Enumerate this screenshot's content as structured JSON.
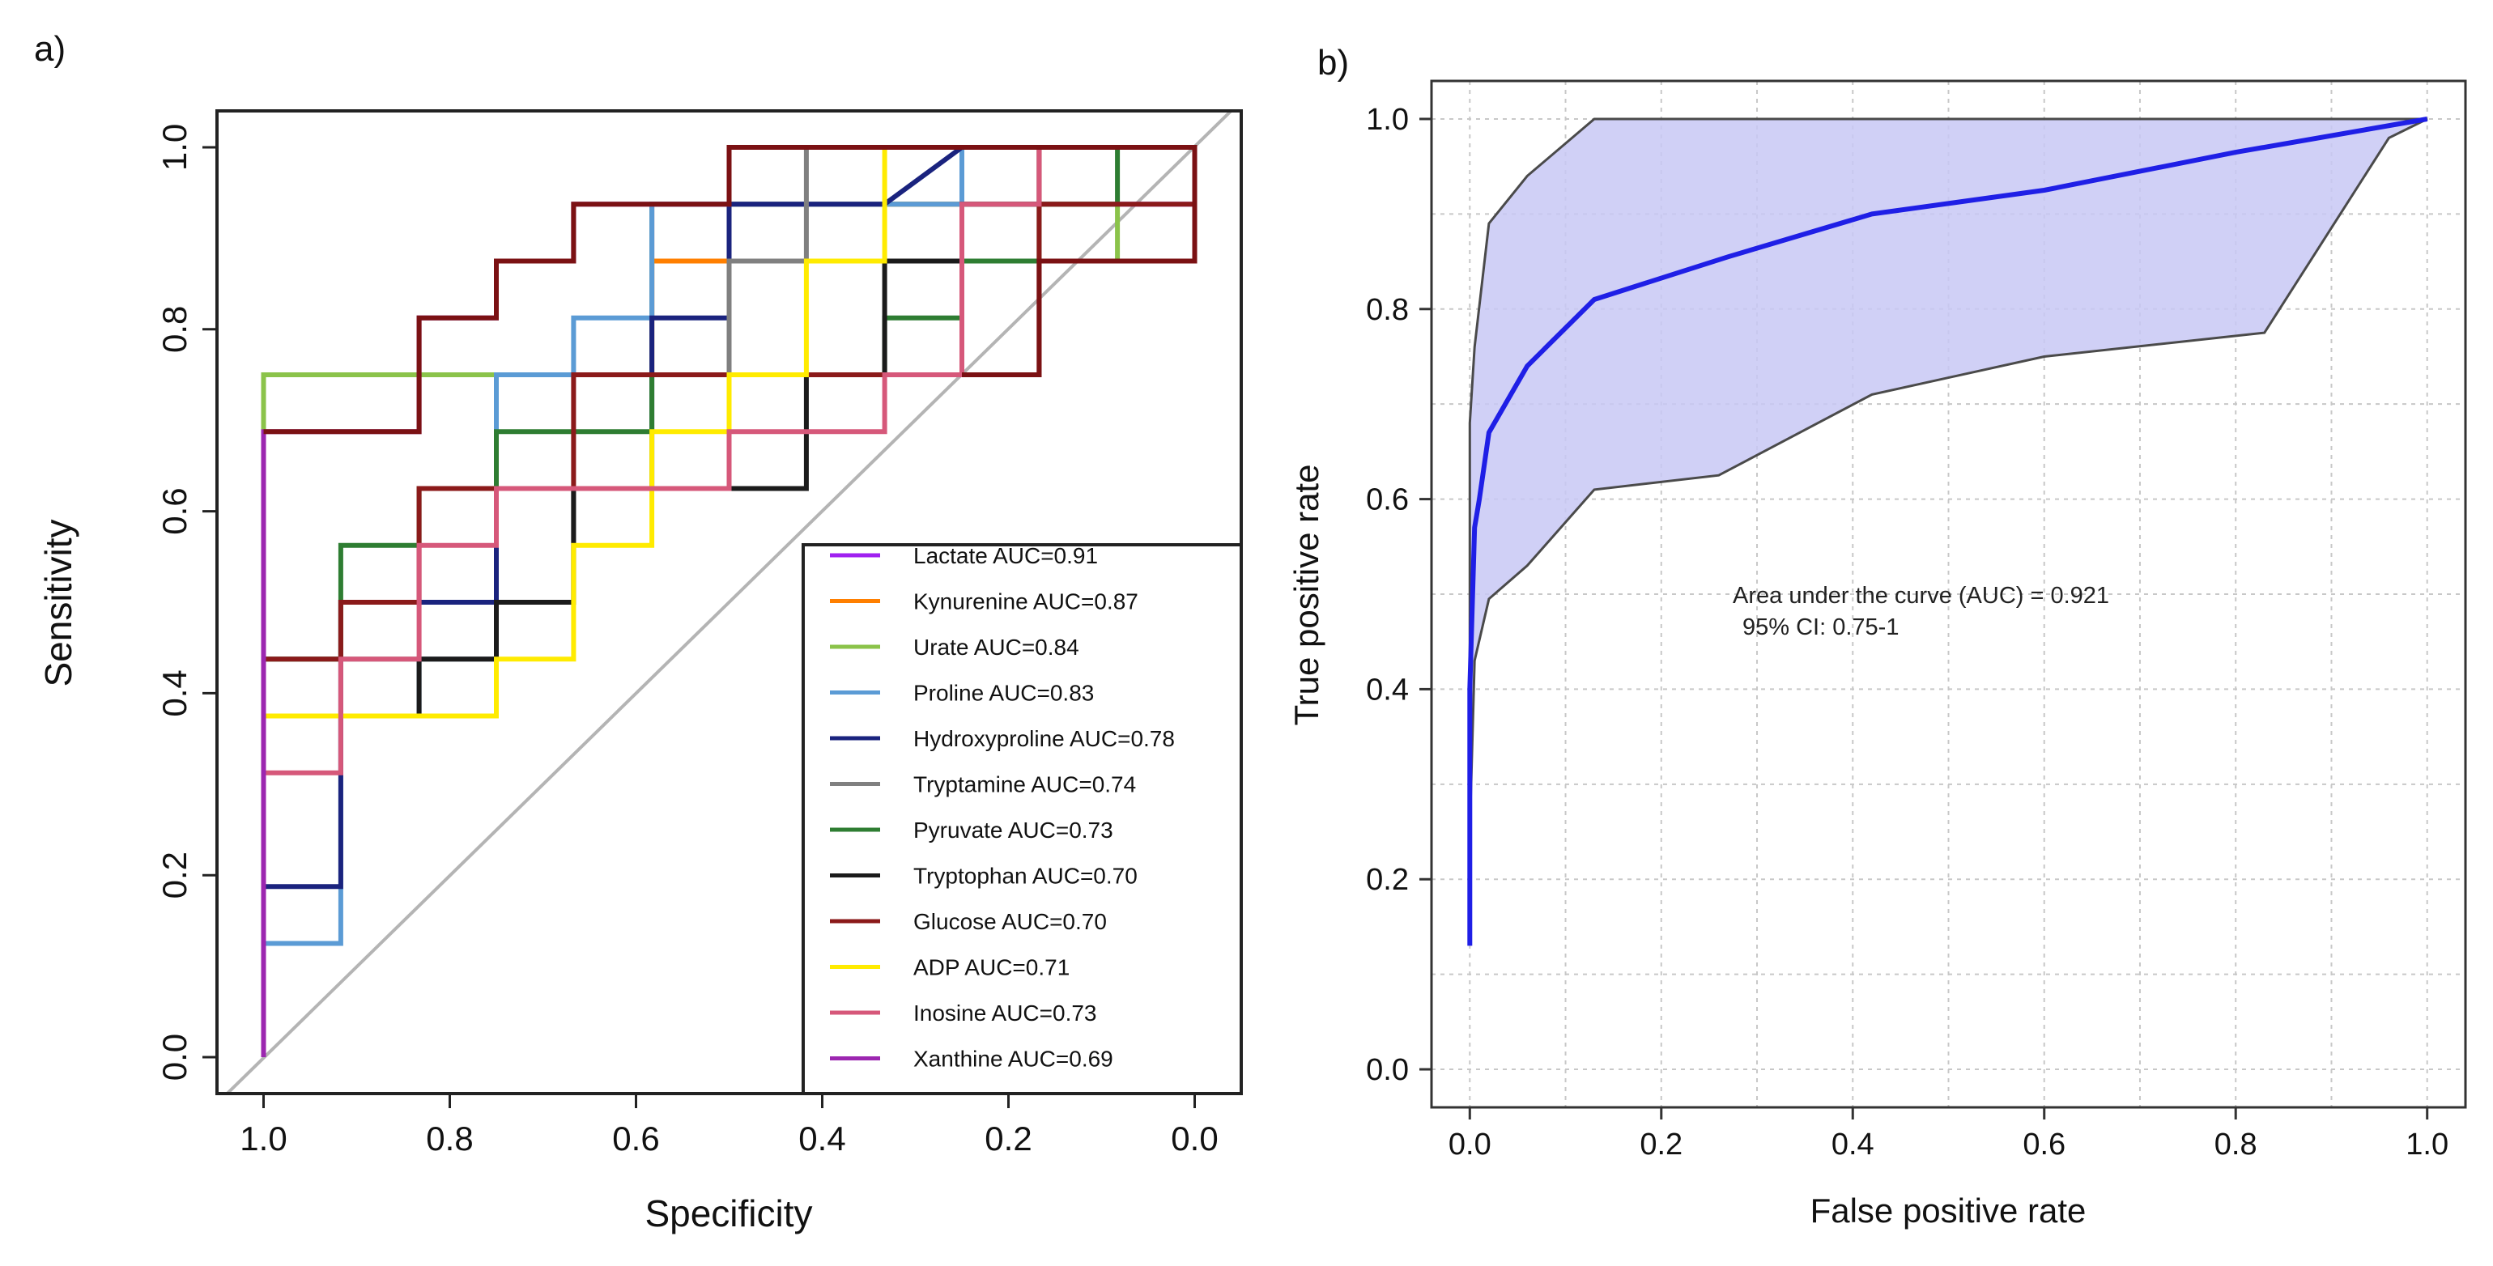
{
  "chart_data": [
    {
      "panel_label": "a)",
      "type": "line",
      "subtype": "roc-step",
      "title": "",
      "xlabel": "Specificity",
      "ylabel": "Sensitivity",
      "xlim": [
        1.05,
        -0.05
      ],
      "ylim": [
        -0.04,
        1.04
      ],
      "x_ticks": [
        1.0,
        0.8,
        0.6,
        0.4,
        0.2,
        0.0
      ],
      "x_tick_labels": [
        "1.0",
        "0.8",
        "0.6",
        "0.4",
        "0.2",
        "0.0"
      ],
      "y_ticks": [
        0.0,
        0.2,
        0.4,
        0.6,
        0.8,
        1.0
      ],
      "y_tick_labels": [
        "0.0",
        "0.2",
        "0.4",
        "0.6",
        "0.8",
        "1.0"
      ],
      "grid": false,
      "legend_position": "bottom-right",
      "reference_line": {
        "color": "#b4b4b4",
        "from": [
          1.0,
          0.0
        ],
        "to": [
          0.0,
          1.0
        ]
      },
      "series": [
        {
          "name": "Lactate AUC=0.91",
          "color": "#a020f0",
          "points": [
            [
              1.0,
              0.0
            ],
            [
              1.0,
              0.75
            ],
            [
              0.583,
              0.75
            ],
            [
              0.583,
              0.9375
            ],
            [
              0.0,
              0.9375
            ],
            [
              0.0,
              1.0
            ]
          ]
        },
        {
          "name": "Kynurenine AUC=0.87",
          "color": "#ff7f00",
          "points": [
            [
              1.0,
              0.0
            ],
            [
              1.0,
              0.75
            ],
            [
              0.583,
              0.75
            ],
            [
              0.583,
              0.875
            ],
            [
              0.5,
              0.875
            ],
            [
              0.5,
              0.9375
            ],
            [
              0.25,
              0.9375
            ],
            [
              0.25,
              1.0
            ],
            [
              0.0,
              1.0
            ]
          ]
        },
        {
          "name": "Urate AUC=0.84",
          "color": "#8bc34a",
          "points": [
            [
              1.0,
              0.0
            ],
            [
              1.0,
              0.75
            ],
            [
              0.583,
              0.75
            ],
            [
              0.583,
              0.9375
            ],
            [
              0.083,
              0.9375
            ],
            [
              0.083,
              0.875
            ],
            [
              0.25,
              0.875
            ],
            [
              0.25,
              1.0
            ],
            [
              0.0,
              1.0
            ],
            [
              0.0,
              0.9375
            ]
          ]
        },
        {
          "name": "Proline AUC=0.83",
          "color": "#5b9bd5",
          "points": [
            [
              1.0,
              0.0
            ],
            [
              1.0,
              0.125
            ],
            [
              0.917,
              0.125
            ],
            [
              0.917,
              0.375
            ],
            [
              0.833,
              0.375
            ],
            [
              0.833,
              0.4375
            ],
            [
              0.75,
              0.4375
            ],
            [
              0.75,
              0.75
            ],
            [
              0.667,
              0.75
            ],
            [
              0.667,
              0.8125
            ],
            [
              0.583,
              0.8125
            ],
            [
              0.583,
              0.9375
            ],
            [
              0.25,
              0.9375
            ],
            [
              0.25,
              1.0
            ],
            [
              0.0,
              1.0
            ]
          ]
        },
        {
          "name": "Hydroxyproline AUC=0.78",
          "color": "#1a237e",
          "points": [
            [
              1.0,
              0.0
            ],
            [
              1.0,
              0.1875
            ],
            [
              0.917,
              0.1875
            ],
            [
              0.917,
              0.5
            ],
            [
              0.75,
              0.5
            ],
            [
              0.75,
              0.625
            ],
            [
              0.583,
              0.625
            ],
            [
              0.583,
              0.8125
            ],
            [
              0.5,
              0.8125
            ],
            [
              0.5,
              0.9375
            ],
            [
              0.333,
              0.9375
            ],
            [
              0.25,
              1.0
            ],
            [
              0.0,
              1.0
            ]
          ]
        },
        {
          "name": "Tryptamine AUC=0.74",
          "color": "#808080",
          "points": [
            [
              1.0,
              0.0
            ],
            [
              1.0,
              0.4375
            ],
            [
              0.75,
              0.4375
            ],
            [
              0.75,
              0.5
            ],
            [
              0.667,
              0.5
            ],
            [
              0.667,
              0.625
            ],
            [
              0.5,
              0.625
            ],
            [
              0.5,
              0.875
            ],
            [
              0.417,
              0.875
            ],
            [
              0.417,
              1.0
            ],
            [
              0.0,
              1.0
            ]
          ]
        },
        {
          "name": "Pyruvate AUC=0.73",
          "color": "#2e7d32",
          "points": [
            [
              1.0,
              0.0
            ],
            [
              1.0,
              0.4375
            ],
            [
              0.917,
              0.4375
            ],
            [
              0.917,
              0.5625
            ],
            [
              0.833,
              0.5625
            ],
            [
              0.833,
              0.625
            ],
            [
              0.75,
              0.625
            ],
            [
              0.75,
              0.6875
            ],
            [
              0.583,
              0.6875
            ],
            [
              0.583,
              0.75
            ],
            [
              0.333,
              0.75
            ],
            [
              0.333,
              0.8125
            ],
            [
              0.25,
              0.8125
            ],
            [
              0.25,
              0.875
            ],
            [
              0.167,
              0.875
            ],
            [
              0.167,
              0.9375
            ],
            [
              0.083,
              0.9375
            ],
            [
              0.083,
              1.0
            ],
            [
              0.0,
              1.0
            ]
          ]
        },
        {
          "name": "Tryptophan AUC=0.70",
          "color": "#1b1b1b",
          "points": [
            [
              1.0,
              0.0
            ],
            [
              1.0,
              0.375
            ],
            [
              0.833,
              0.375
            ],
            [
              0.833,
              0.4375
            ],
            [
              0.75,
              0.4375
            ],
            [
              0.75,
              0.5
            ],
            [
              0.667,
              0.5
            ],
            [
              0.667,
              0.625
            ],
            [
              0.417,
              0.625
            ],
            [
              0.417,
              0.75
            ],
            [
              0.333,
              0.75
            ],
            [
              0.333,
              0.875
            ],
            [
              0.25,
              0.875
            ],
            [
              0.25,
              0.9375
            ],
            [
              0.167,
              0.9375
            ],
            [
              0.167,
              1.0
            ],
            [
              0.0,
              1.0
            ]
          ]
        },
        {
          "name": "Glucose AUC=0.70",
          "color": "#8b1a1a",
          "points": [
            [
              1.0,
              0.0
            ],
            [
              1.0,
              0.4375
            ],
            [
              0.917,
              0.4375
            ],
            [
              0.917,
              0.5
            ],
            [
              0.833,
              0.5
            ],
            [
              0.833,
              0.625
            ],
            [
              0.667,
              0.625
            ],
            [
              0.667,
              0.75
            ],
            [
              0.417,
              0.75
            ],
            [
              0.417,
              0.75
            ],
            [
              0.25,
              0.75
            ],
            [
              0.167,
              0.75
            ],
            [
              0.167,
              0.9375
            ],
            [
              0.0,
              0.9375
            ],
            [
              0.0,
              0.875
            ],
            [
              0.167,
              0.875
            ],
            [
              0.167,
              1.0
            ],
            [
              0.0,
              1.0
            ]
          ]
        },
        {
          "name": "ADP AUC=0.71",
          "color": "#ffeb00",
          "points": [
            [
              1.0,
              0.0
            ],
            [
              1.0,
              0.375
            ],
            [
              0.75,
              0.375
            ],
            [
              0.75,
              0.4375
            ],
            [
              0.667,
              0.4375
            ],
            [
              0.667,
              0.5625
            ],
            [
              0.583,
              0.5625
            ],
            [
              0.583,
              0.6875
            ],
            [
              0.5,
              0.6875
            ],
            [
              0.5,
              0.75
            ],
            [
              0.417,
              0.75
            ],
            [
              0.417,
              0.875
            ],
            [
              0.333,
              0.875
            ],
            [
              0.333,
              0.9375
            ],
            [
              0.333,
              1.0
            ],
            [
              0.0,
              1.0
            ]
          ]
        },
        {
          "name": "Inosine AUC=0.73",
          "color": "#d6587a",
          "points": [
            [
              1.0,
              0.0
            ],
            [
              1.0,
              0.3125
            ],
            [
              0.917,
              0.3125
            ],
            [
              0.917,
              0.4375
            ],
            [
              0.833,
              0.4375
            ],
            [
              0.833,
              0.5625
            ],
            [
              0.75,
              0.5625
            ],
            [
              0.75,
              0.625
            ],
            [
              0.5,
              0.625
            ],
            [
              0.5,
              0.6875
            ],
            [
              0.333,
              0.6875
            ],
            [
              0.333,
              0.75
            ],
            [
              0.25,
              0.75
            ],
            [
              0.25,
              0.9375
            ],
            [
              0.167,
              0.9375
            ],
            [
              0.167,
              1.0
            ],
            [
              0.0,
              1.0
            ]
          ]
        },
        {
          "name": "Xanthine AUC=0.69",
          "color": "#9c27b0",
          "points": [
            [
              1.0,
              0.0
            ],
            [
              1.0,
              0.6875
            ],
            [
              0.833,
              0.6875
            ],
            [
              0.833,
              0.8125
            ],
            [
              0.75,
              0.8125
            ],
            [
              0.75,
              0.875
            ],
            [
              0.667,
              0.875
            ],
            [
              0.667,
              0.9375
            ],
            [
              0.5,
              0.9375
            ],
            [
              0.5,
              1.0
            ],
            [
              0.167,
              1.0
            ],
            [
              0.083,
              1.0
            ],
            [
              0.0,
              1.0
            ]
          ]
        },
        {
          "name": "_dark_red_top",
          "color": "#7b1113",
          "legend": false,
          "points": [
            [
              1.0,
              0.6875
            ],
            [
              0.833,
              0.6875
            ],
            [
              0.833,
              0.8125
            ],
            [
              0.75,
              0.8125
            ],
            [
              0.75,
              0.875
            ],
            [
              0.667,
              0.875
            ],
            [
              0.667,
              0.9375
            ],
            [
              0.5,
              0.9375
            ],
            [
              0.5,
              1.0
            ],
            [
              0.0,
              1.0
            ],
            [
              0.0,
              0.875
            ],
            [
              0.167,
              0.875
            ],
            [
              0.167,
              0.75
            ],
            [
              0.25,
              0.75
            ],
            [
              0.25,
              0.75
            ]
          ]
        }
      ]
    },
    {
      "panel_label": "b)",
      "type": "line",
      "subtype": "roc-with-ci-band",
      "title": "",
      "xlabel": "False positive rate",
      "ylabel": "True positive rate",
      "xlim": [
        -0.04,
        1.04
      ],
      "ylim": [
        -0.04,
        1.04
      ],
      "x_ticks": [
        0.0,
        0.2,
        0.4,
        0.6,
        0.8,
        1.0
      ],
      "x_tick_labels": [
        "0.0",
        "0.2",
        "0.4",
        "0.6",
        "0.8",
        "1.0"
      ],
      "y_ticks": [
        0.0,
        0.2,
        0.4,
        0.6,
        0.8,
        1.0
      ],
      "y_tick_labels": [
        "0.0",
        "0.2",
        "0.4",
        "0.6",
        "0.8",
        "1.0"
      ],
      "grid": true,
      "annotation": [
        "Area under the curve (AUC) = 0.921",
        "95% CI: 0.75-1"
      ],
      "curve": {
        "color": "#1f1fe6",
        "x": [
          0.0,
          0.0,
          0.005,
          0.01,
          0.02,
          0.06,
          0.13,
          0.27,
          0.42,
          0.6,
          0.8,
          1.0
        ],
        "y": [
          0.13,
          0.4,
          0.57,
          0.6,
          0.67,
          0.74,
          0.81,
          0.855,
          0.9,
          0.925,
          0.965,
          1.0
        ]
      },
      "ci_band": {
        "fill": "#c8c8f5",
        "stroke": "#4a4a4a",
        "upper_x": [
          0.0,
          0.0,
          0.005,
          0.02,
          0.06,
          0.13,
          0.97,
          1.0
        ],
        "upper_y": [
          0.25,
          0.68,
          0.76,
          0.89,
          0.94,
          1.0,
          1.0,
          1.0
        ],
        "lower_x": [
          1.0,
          0.96,
          0.83,
          0.6,
          0.42,
          0.26,
          0.13,
          0.06,
          0.02,
          0.005,
          0.0
        ],
        "lower_y": [
          1.0,
          0.98,
          0.775,
          0.75,
          0.71,
          0.625,
          0.61,
          0.53,
          0.495,
          0.43,
          0.25
        ]
      }
    }
  ]
}
